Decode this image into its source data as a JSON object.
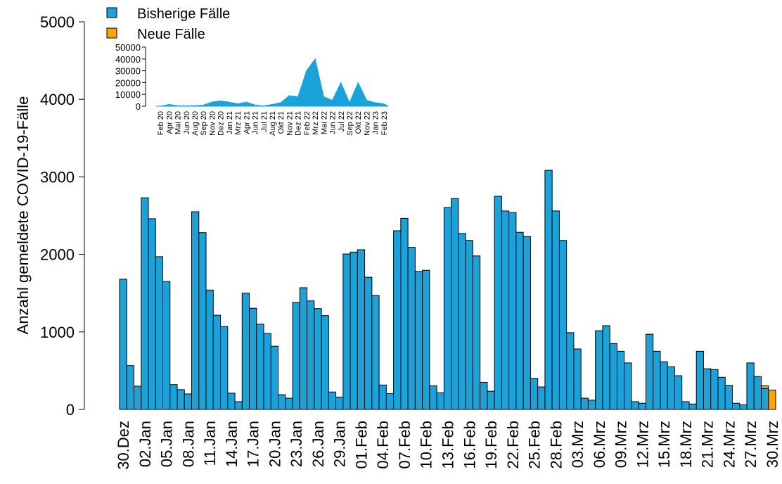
{
  "chart_data": [
    {
      "type": "bar",
      "stacked": true,
      "ylabel": "Anzahl gemeldete COVID-19-Fälle",
      "legend": "top-left",
      "categories": [
        "30.Dez",
        null,
        null,
        "02.Jan",
        null,
        null,
        "05.Jan",
        null,
        null,
        "08.Jan",
        null,
        null,
        "11.Jan",
        null,
        null,
        "14.Jan",
        null,
        null,
        "17.Jan",
        null,
        null,
        "20.Jan",
        null,
        null,
        "23.Jan",
        null,
        null,
        "26.Jan",
        null,
        null,
        "29.Jan",
        null,
        null,
        "01.Feb",
        null,
        null,
        "04.Feb",
        null,
        null,
        "07.Feb",
        null,
        null,
        "10.Feb",
        null,
        null,
        "13.Feb",
        null,
        null,
        "16.Feb",
        null,
        null,
        "19.Feb",
        null,
        null,
        "22.Feb",
        null,
        null,
        "25.Feb",
        null,
        null,
        "28.Feb",
        null,
        null,
        "03.Mrz",
        null,
        null,
        "06.Mrz",
        null,
        null,
        "09.Mrz",
        null,
        null,
        "12.Mrz",
        null,
        null,
        "15.Mrz",
        null,
        null,
        "18.Mrz",
        null,
        null,
        "21.Mrz",
        null,
        null,
        "24.Mrz",
        null,
        null,
        "27.Mrz",
        null,
        null,
        "30.Mrz"
      ],
      "series": [
        {
          "name": "Bisherige Fälle",
          "color": "#18a4db",
          "values": [
            1680,
            565,
            300,
            2730,
            2460,
            1970,
            1650,
            320,
            255,
            200,
            2550,
            2280,
            1540,
            1215,
            1070,
            210,
            100,
            1500,
            1305,
            1100,
            980,
            815,
            190,
            145,
            1380,
            1570,
            1400,
            1300,
            1210,
            225,
            160,
            2005,
            2030,
            2060,
            1705,
            1470,
            315,
            205,
            2305,
            2465,
            2090,
            1780,
            1795,
            305,
            215,
            2605,
            2720,
            2270,
            2180,
            1980,
            350,
            235,
            2750,
            2560,
            2540,
            2285,
            2230,
            400,
            290,
            3085,
            2560,
            2180,
            990,
            780,
            145,
            120,
            1015,
            1080,
            850,
            750,
            600,
            100,
            80,
            970,
            750,
            615,
            550,
            435,
            100,
            70,
            750,
            525,
            515,
            415,
            310,
            80,
            60,
            600,
            425,
            270,
            0
          ]
        },
        {
          "name": "Neue Fälle",
          "color": "#ffa500",
          "values": [
            0,
            0,
            0,
            0,
            0,
            0,
            0,
            0,
            0,
            0,
            0,
            0,
            0,
            0,
            0,
            0,
            0,
            0,
            0,
            0,
            0,
            0,
            0,
            0,
            0,
            0,
            0,
            0,
            0,
            0,
            0,
            0,
            0,
            0,
            0,
            0,
            0,
            0,
            0,
            0,
            0,
            0,
            0,
            0,
            0,
            0,
            0,
            0,
            0,
            0,
            0,
            0,
            0,
            0,
            0,
            0,
            0,
            0,
            0,
            0,
            0,
            0,
            0,
            0,
            0,
            0,
            0,
            0,
            0,
            0,
            0,
            0,
            0,
            0,
            0,
            0,
            0,
            0,
            0,
            0,
            0,
            0,
            0,
            0,
            0,
            0,
            0,
            0,
            0,
            35,
            250
          ]
        }
      ],
      "ylim": [
        0,
        5000
      ],
      "yticks": [
        0,
        1000,
        2000,
        3000,
        4000,
        5000
      ]
    },
    {
      "type": "area",
      "color": "#18a4db",
      "categories": [
        "Feb 20",
        "Apr 20",
        "Mai 20",
        "Jun 20",
        "Aug 20",
        "Sep 20",
        "Nov 20",
        "Dez 20",
        "Jan 21",
        "Mrz 21",
        "Apr 21",
        "Jun 21",
        "Jul 21",
        "Aug 21",
        "Okt 21",
        "Nov 21",
        "Dez 21",
        "Feb 22",
        "Mrz 22",
        "Mai 22",
        "Jun 22",
        "Jul 22",
        "Sep 22",
        "Okt 22",
        "Nov 22",
        "Jan 23",
        "Feb 23"
      ],
      "values": [
        0,
        1500,
        500,
        300,
        500,
        1000,
        3500,
        4500,
        3500,
        2000,
        3500,
        1000,
        300,
        1500,
        3000,
        9000,
        8000,
        30000,
        40000,
        8000,
        5000,
        20000,
        3000,
        20000,
        5000,
        3000,
        2000
      ],
      "ylim": [
        0,
        50000
      ],
      "yticks": [
        0,
        10000,
        20000,
        30000,
        40000,
        50000
      ]
    }
  ]
}
